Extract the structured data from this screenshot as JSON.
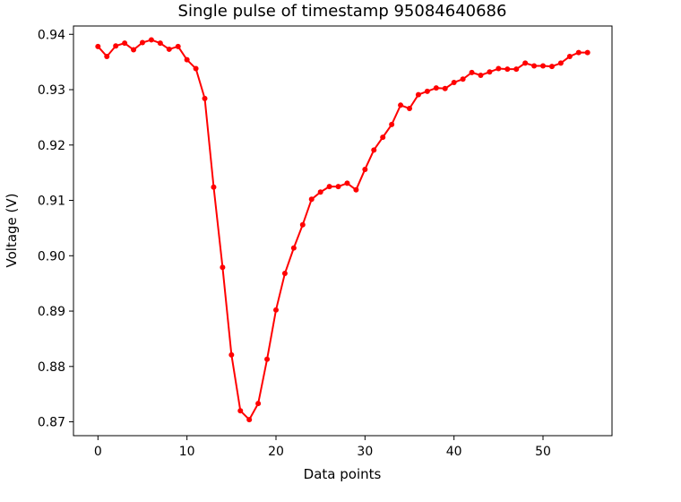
{
  "chart_data": {
    "type": "line",
    "title": "Single pulse of timestamp 95084640686",
    "xlabel": "Data points",
    "ylabel": "Voltage (V)",
    "xlim": [
      -2.75,
      57.75
    ],
    "ylim": [
      0.8675,
      0.9415
    ],
    "xticks": [
      0,
      10,
      20,
      30,
      40,
      50
    ],
    "yticks": [
      0.87,
      0.88,
      0.89,
      0.9,
      0.91,
      0.92,
      0.93,
      0.94
    ],
    "ytick_labels": [
      "0.87",
      "0.88",
      "0.89",
      "0.90",
      "0.91",
      "0.92",
      "0.93",
      "0.94"
    ],
    "grid": false,
    "series": [
      {
        "color": "#ff0000",
        "marker": "circle",
        "x": [
          0,
          1,
          2,
          3,
          4,
          5,
          6,
          7,
          8,
          9,
          10,
          11,
          12,
          13,
          14,
          15,
          16,
          17,
          18,
          19,
          20,
          21,
          22,
          23,
          24,
          25,
          26,
          27,
          28,
          29,
          30,
          31,
          32,
          33,
          34,
          35,
          36,
          37,
          38,
          39,
          40,
          41,
          42,
          43,
          44,
          45,
          46,
          47,
          48,
          49,
          50,
          51,
          52,
          53,
          54,
          55
        ],
        "y": [
          0.9378,
          0.936,
          0.9379,
          0.9384,
          0.9372,
          0.9385,
          0.939,
          0.9384,
          0.9373,
          0.9378,
          0.9354,
          0.9338,
          0.9284,
          0.9124,
          0.8979,
          0.8821,
          0.872,
          0.8704,
          0.8733,
          0.8813,
          0.8902,
          0.8968,
          0.9014,
          0.9056,
          0.9102,
          0.9115,
          0.9125,
          0.9125,
          0.9131,
          0.9119,
          0.9156,
          0.9191,
          0.9214,
          0.9237,
          0.9272,
          0.9266,
          0.9291,
          0.9297,
          0.9303,
          0.9302,
          0.9313,
          0.9319,
          0.9331,
          0.9326,
          0.9332,
          0.9338,
          0.9337,
          0.9337,
          0.9348,
          0.9343,
          0.9343,
          0.9342,
          0.9348,
          0.936,
          0.9367,
          0.9367
        ]
      }
    ]
  }
}
